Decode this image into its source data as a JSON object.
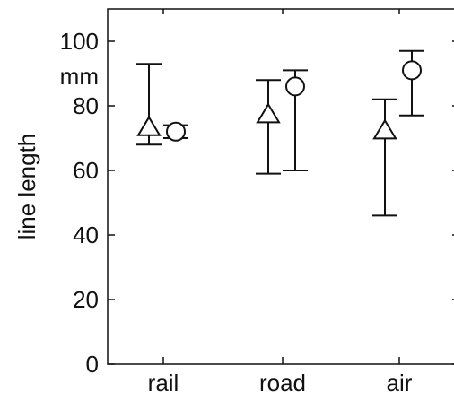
{
  "chart_data": {
    "type": "scatter",
    "ylabel": "line length",
    "yunit": "mm",
    "ylim": [
      0,
      110
    ],
    "yticks": [
      0,
      20,
      40,
      60,
      80,
      100
    ],
    "categories": [
      "rail",
      "road",
      "air"
    ],
    "grid": false,
    "legend": "none",
    "series": [
      {
        "marker": "triangle",
        "values": [
          73,
          77,
          72
        ],
        "lower": [
          68,
          59,
          46
        ],
        "upper": [
          93,
          88,
          82
        ]
      },
      {
        "marker": "circle",
        "values": [
          72,
          86,
          91
        ],
        "lower": [
          70,
          60,
          77
        ],
        "upper": [
          74,
          91,
          97
        ]
      }
    ]
  },
  "colors": {
    "ink": "#111111",
    "background": "#ffffff"
  }
}
